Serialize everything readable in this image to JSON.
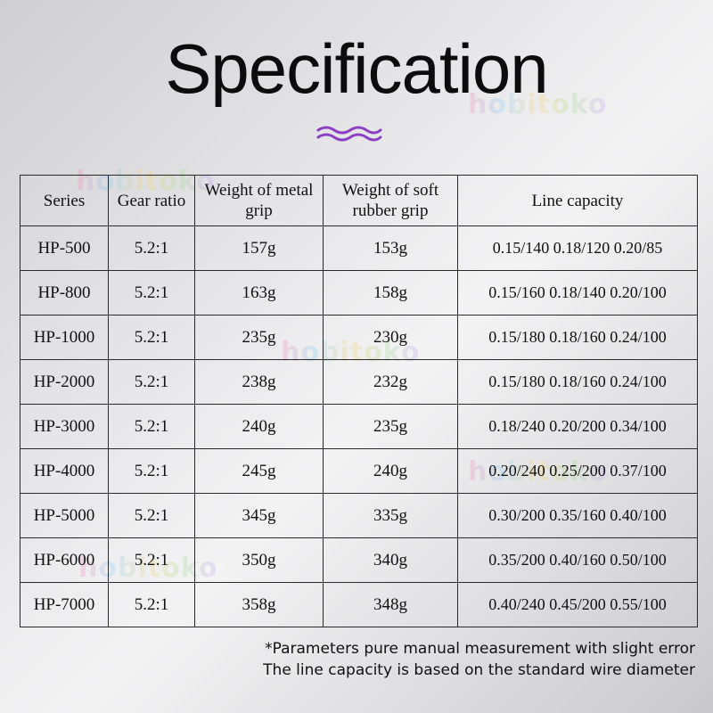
{
  "title": "Specification",
  "watermark": "hobitoko",
  "accent_color": "#8b3fc4",
  "table": {
    "headers": [
      "Series",
      "Gear ratio",
      "Weight of metal grip",
      "Weight of soft rubber grip",
      "Line capacity"
    ],
    "rows": [
      [
        "HP-500",
        "5.2:1",
        "157g",
        "153g",
        "0.15/140 0.18/120 0.20/85"
      ],
      [
        "HP-800",
        "5.2:1",
        "163g",
        "158g",
        "0.15/160 0.18/140 0.20/100"
      ],
      [
        "HP-1000",
        "5.2:1",
        "235g",
        "230g",
        "0.15/180 0.18/160 0.24/100"
      ],
      [
        "HP-2000",
        "5.2:1",
        "238g",
        "232g",
        "0.15/180 0.18/160 0.24/100"
      ],
      [
        "HP-3000",
        "5.2:1",
        "240g",
        "235g",
        "0.18/240 0.20/200 0.34/100"
      ],
      [
        "HP-4000",
        "5.2:1",
        "245g",
        "240g",
        "0.20/240 0.25/200 0.37/100"
      ],
      [
        "HP-5000",
        "5.2:1",
        "345g",
        "335g",
        "0.30/200 0.35/160 0.40/100"
      ],
      [
        "HP-6000",
        "5.2:1",
        "350g",
        "340g",
        "0.35/200 0.40/160 0.50/100"
      ],
      [
        "HP-7000",
        "5.2:1",
        "358g",
        "348g",
        "0.40/240 0.45/200 0.55/100"
      ]
    ]
  },
  "notes": [
    "*Parameters pure manual measurement with slight error",
    "The line capacity is based on the standard wire diameter"
  ]
}
